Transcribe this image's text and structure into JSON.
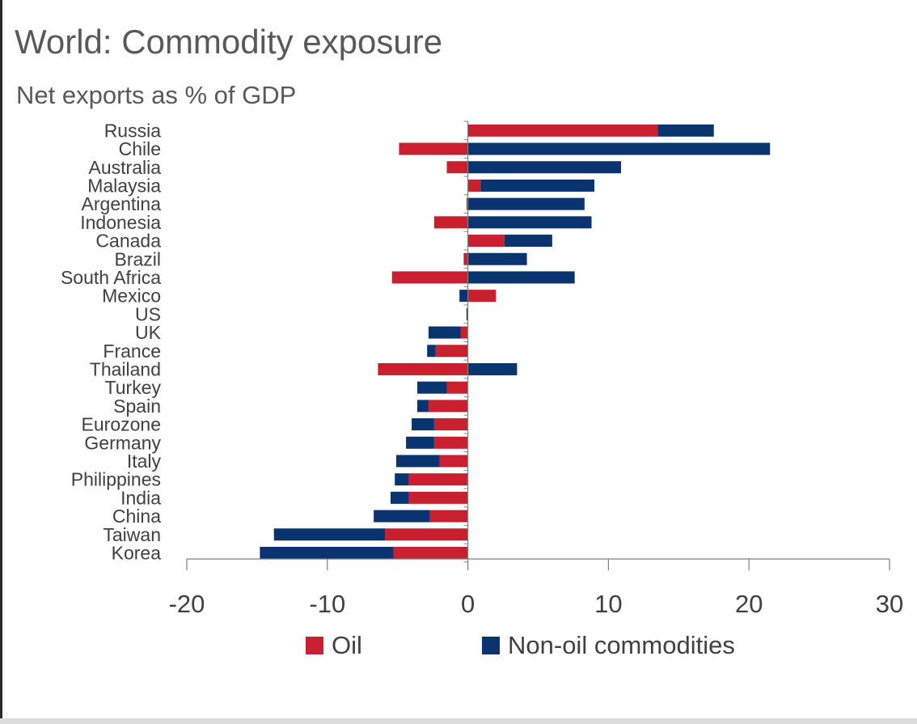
{
  "title": "World: Commodity exposure",
  "subtitle": "Net exports as % of GDP",
  "colors": {
    "oil": "#c8202e",
    "nonoil": "#0a3470",
    "axis": "#7f7f7f",
    "text": "#404040"
  },
  "chart_data": {
    "type": "bar",
    "orientation": "horizontal",
    "stacked": true,
    "categories": [
      "Russia",
      "Chile",
      "Australia",
      "Malaysia",
      "Argentina",
      "Indonesia",
      "Canada",
      "Brazil",
      "South Africa",
      "Mexico",
      "US",
      "UK",
      "France",
      "Thailand",
      "Turkey",
      "Spain",
      "Eurozone",
      "Germany",
      "Italy",
      "Philippines",
      "India",
      "China",
      "Taiwan",
      "Korea"
    ],
    "series": [
      {
        "name": "Oil",
        "color": "#c8202e",
        "values": [
          13.5,
          -4.9,
          -1.5,
          0.9,
          -0.1,
          -2.4,
          2.6,
          -0.3,
          -5.4,
          2.0,
          0.0,
          -0.5,
          -2.3,
          -6.4,
          -1.5,
          -2.8,
          -2.4,
          -2.4,
          -2.0,
          -4.2,
          -4.2,
          -2.7,
          -5.9,
          -5.3
        ]
      },
      {
        "name": "Non-oil commodities",
        "color": "#0a3470",
        "values": [
          4.0,
          21.5,
          10.9,
          8.1,
          8.3,
          8.8,
          3.4,
          4.2,
          7.6,
          -0.6,
          -0.1,
          -2.3,
          -0.6,
          3.5,
          -2.1,
          -0.8,
          -1.6,
          -2.0,
          -3.1,
          -1.0,
          -1.3,
          -4.0,
          -7.9,
          -9.5
        ]
      }
    ],
    "xlim": [
      -20,
      30
    ],
    "xticks": [
      "-20",
      "-10",
      "0",
      "10",
      "20",
      "30"
    ],
    "xtick_values": [
      -20,
      -10,
      0,
      10,
      20,
      30
    ],
    "legend_position": "bottom",
    "grid": false
  }
}
